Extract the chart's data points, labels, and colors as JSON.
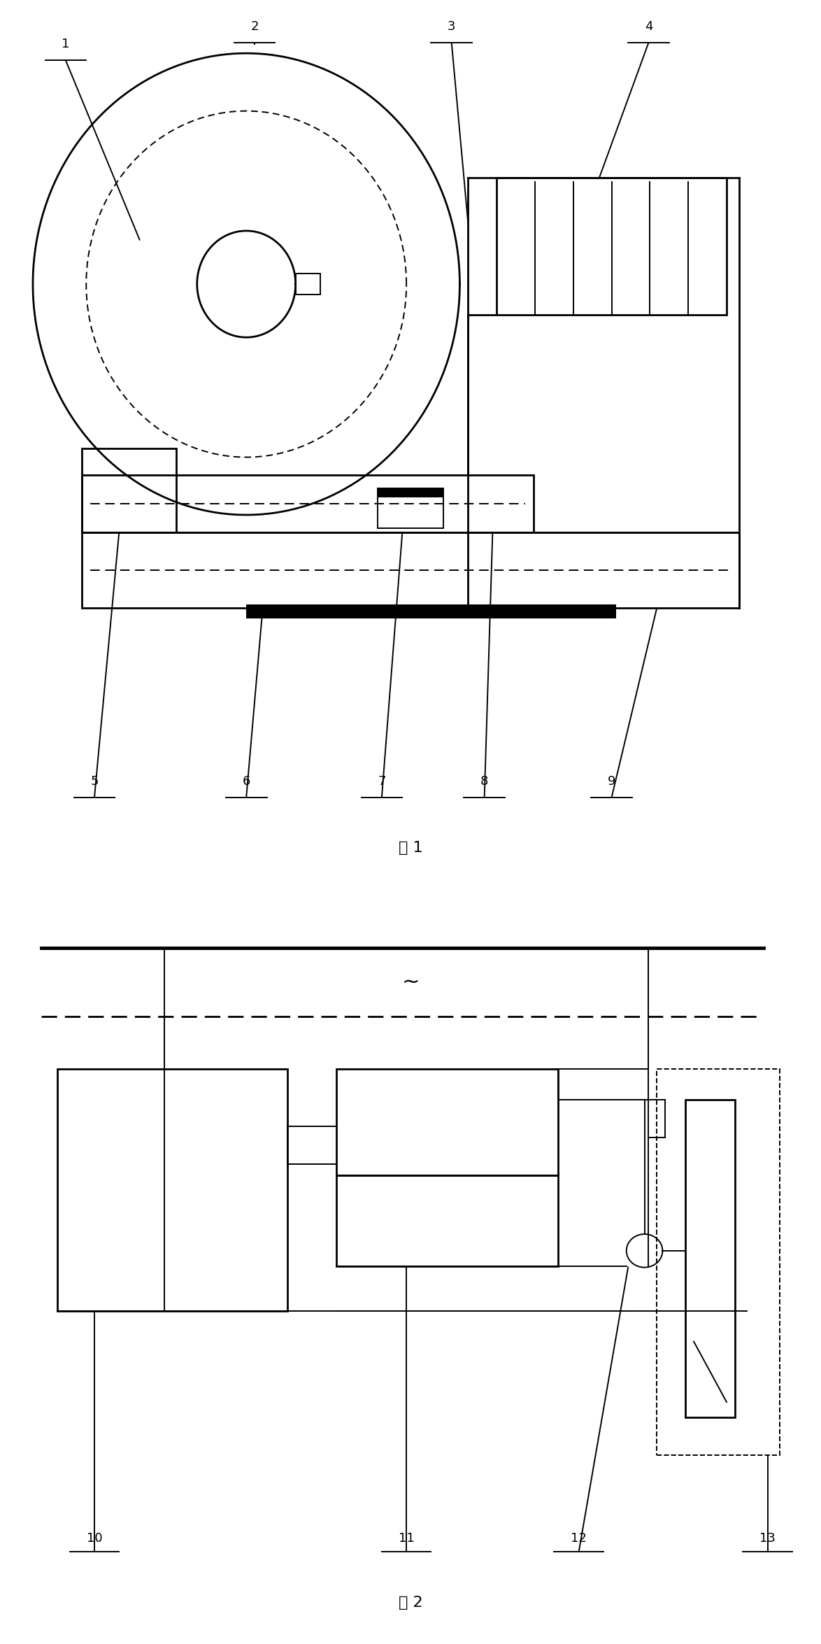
{
  "fig_width": 11.74,
  "fig_height": 23.5,
  "bg_color": "#ffffff",
  "fig1_caption": "图 1",
  "fig2_caption": "图 2",
  "tilde": "~",
  "lw": 1.4,
  "lw_med": 2.0,
  "lw_thick": 3.5
}
